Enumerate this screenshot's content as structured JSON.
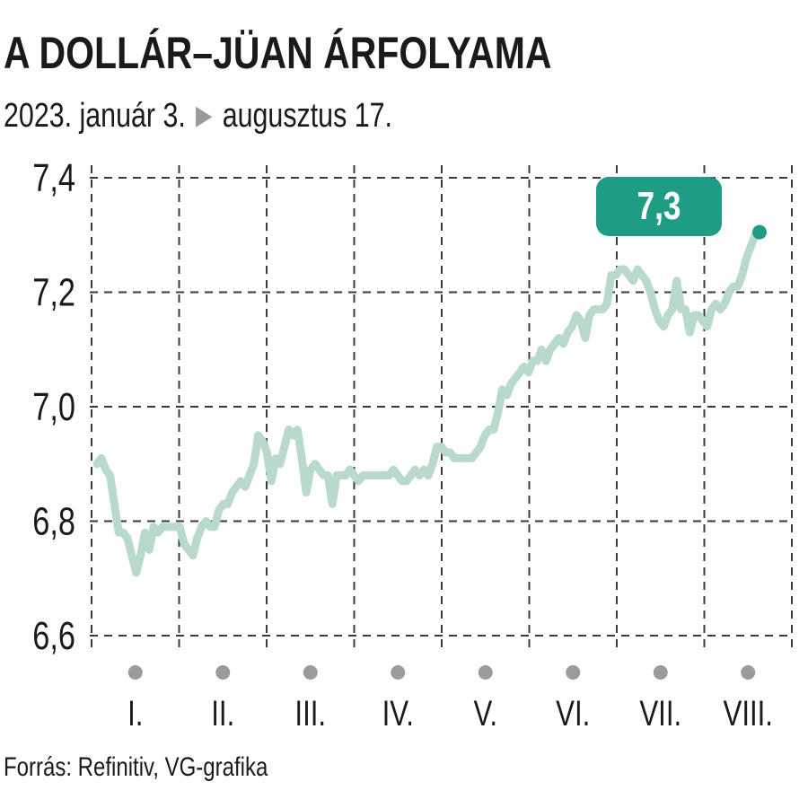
{
  "header": {
    "title": "A DOLLÁR–JÜAN ÁRFOLYAMA",
    "subtitle_start": "2023. január 3.",
    "subtitle_arrow_icon": "play-triangle-icon",
    "subtitle_end": "augusztus 17."
  },
  "footer": {
    "source": "Forrás: Refinitiv, VG-grafika"
  },
  "colors": {
    "line": "#b9d9cb",
    "accent": "#1f9c84",
    "grid": "#3a3a3a",
    "month_dot": "#9b9b9b"
  },
  "chart_data": {
    "type": "line",
    "title": "A DOLLÁR–JÜAN ÁRFOLYAMA",
    "xlabel": "",
    "ylabel": "",
    "ylim": [
      6.6,
      7.4
    ],
    "yticks": [
      6.6,
      6.8,
      7.0,
      7.2,
      7.4
    ],
    "ytick_labels": [
      "6,6",
      "6,8",
      "7,0",
      "7,2",
      "7,4"
    ],
    "months": [
      "I.",
      "II.",
      "III.",
      "IV.",
      "V.",
      "VI.",
      "VII.",
      "VIII."
    ],
    "grid": true,
    "callout": {
      "label": "7,3",
      "value": 7.305
    },
    "series": [
      {
        "values": [
          6.9,
          6.91,
          6.89,
          6.88,
          6.83,
          6.78,
          6.78,
          6.77,
          6.74,
          6.71,
          6.74,
          6.78,
          6.75,
          6.79,
          6.78,
          6.79,
          6.79,
          6.79,
          6.79,
          6.79,
          6.76,
          6.75,
          6.74,
          6.77,
          6.79,
          6.8,
          6.79,
          6.79,
          6.82,
          6.83,
          6.83,
          6.85,
          6.86,
          6.87,
          6.86,
          6.88,
          6.9,
          6.95,
          6.94,
          6.92,
          6.87,
          6.91,
          6.9,
          6.93,
          6.96,
          6.95,
          6.96,
          6.91,
          6.85,
          6.89,
          6.9,
          6.89,
          6.88,
          6.88,
          6.83,
          6.88,
          6.88,
          6.88,
          6.89,
          6.88,
          6.87,
          6.88,
          6.88,
          6.88,
          6.88,
          6.88,
          6.88,
          6.88,
          6.89,
          6.88,
          6.87,
          6.87,
          6.88,
          6.89,
          6.88,
          6.89,
          6.88,
          6.9,
          6.93,
          6.93,
          6.92,
          6.92,
          6.91,
          6.91,
          6.91,
          6.91,
          6.91,
          6.92,
          6.93,
          6.95,
          6.96,
          6.96,
          6.99,
          7.03,
          7.02,
          7.04,
          7.05,
          7.06,
          7.07,
          7.06,
          7.08,
          7.08,
          7.1,
          7.08,
          7.1,
          7.11,
          7.12,
          7.11,
          7.13,
          7.14,
          7.16,
          7.15,
          7.12,
          7.16,
          7.17,
          7.17,
          7.17,
          7.18,
          7.23,
          7.23,
          7.24,
          7.24,
          7.23,
          7.22,
          7.24,
          7.23,
          7.22,
          7.2,
          7.17,
          7.15,
          7.14,
          7.16,
          7.17,
          7.22,
          7.17,
          7.17,
          7.13,
          7.16,
          7.16,
          7.15,
          7.14,
          7.17,
          7.18,
          7.17,
          7.18,
          7.2,
          7.21,
          7.21,
          7.23,
          7.26,
          7.28,
          7.3,
          7.305
        ]
      }
    ]
  }
}
